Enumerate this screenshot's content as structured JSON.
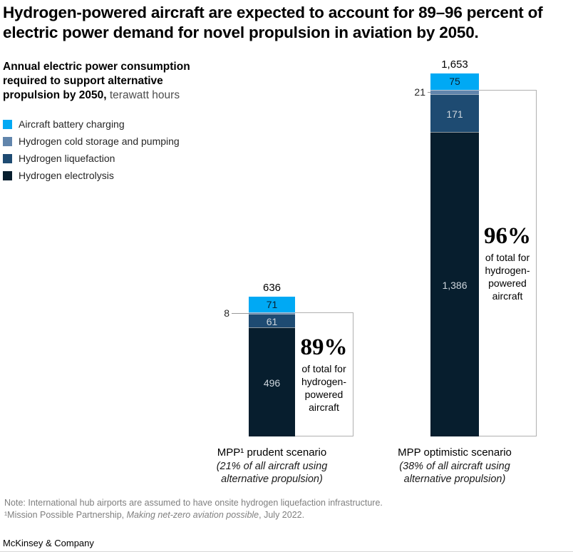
{
  "title": "Hydrogen-powered aircraft are expected to account for 89–96 percent of electric power demand for novel propulsion in aviation by 2050.",
  "subtitle": {
    "bold": "Annual electric power consumption required to support alternative propulsion by 2050,",
    "normal": " terawatt hours"
  },
  "legend": [
    {
      "label": "Aircraft battery charging",
      "color": "#00a9f4"
    },
    {
      "label": "Hydrogen cold storage and pumping",
      "color": "#6185ac"
    },
    {
      "label": "Hydrogen liquefaction",
      "color": "#1e4b72"
    },
    {
      "label": "Hydrogen electrolysis",
      "color": "#071e2e"
    }
  ],
  "chart_data": {
    "type": "bar",
    "stacked": true,
    "unit": "terawatt hours",
    "categories": [
      "MPP¹ prudent scenario",
      "MPP optimistic scenario"
    ],
    "category_subs": [
      "(21% of all aircraft using alternative propulsion)",
      "(38% of all aircraft using alternative propulsion)"
    ],
    "series": [
      {
        "name": "Aircraft battery charging",
        "color": "#00a9f4",
        "values": [
          71,
          75
        ]
      },
      {
        "name": "Hydrogen cold storage and pumping",
        "color": "#6185ac",
        "values": [
          8,
          21
        ]
      },
      {
        "name": "Hydrogen liquefaction",
        "color": "#1e4b72",
        "values": [
          61,
          171
        ]
      },
      {
        "name": "Hydrogen electrolysis",
        "color": "#071e2e",
        "values": [
          496,
          1386
        ]
      }
    ],
    "totals": [
      "636",
      "1,653"
    ],
    "annotations": [
      {
        "pct": "89%",
        "text": "of total for hydrogen-powered aircraft"
      },
      {
        "pct": "96%",
        "text": "of total for hydrogen-powered aircraft"
      }
    ],
    "ylim": [
      0,
      1653
    ],
    "grid": false,
    "legend_position": "top-left"
  },
  "footnote": {
    "line1": "Note: International hub airports are assumed to have onsite hydrogen liquefaction infrastructure.",
    "line2_pre": "¹Mission Possible Partnership, ",
    "line2_italic": "Making net-zero aviation possible",
    "line2_post": ", July 2022."
  },
  "brand": "McKinsey & Company"
}
